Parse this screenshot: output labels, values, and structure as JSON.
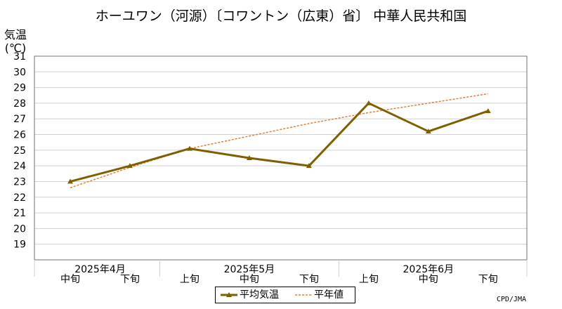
{
  "title": "ホーユワン（河源）〔コワントン（広東）省〕 中華人民共和国",
  "ylabel_line1": "気温",
  "ylabel_line2": "(℃)",
  "credit": "CPD/JMA",
  "legend": {
    "series_label": "平均気温",
    "normal_label": "平年値"
  },
  "colors": {
    "series": "#7f6000",
    "normal": "#ed7d31",
    "grid": "#d0d0d0",
    "axis": "#707070"
  },
  "chart_data": {
    "type": "line",
    "ylim": [
      18,
      31
    ],
    "yticks": [
      19,
      20,
      21,
      22,
      23,
      24,
      25,
      26,
      27,
      28,
      29,
      30,
      31
    ],
    "grid": true,
    "legend_position": "bottom-center",
    "categories": [
      "中旬",
      "下旬",
      "上旬",
      "中旬",
      "下旬",
      "上旬",
      "中旬",
      "下旬"
    ],
    "month_labels": [
      {
        "label": "2025年4月",
        "start": 0,
        "end": 1
      },
      {
        "label": "2025年5月",
        "start": 2,
        "end": 4
      },
      {
        "label": "2025年6月",
        "start": 5,
        "end": 7
      }
    ],
    "series": [
      {
        "name": "平均気温",
        "values": [
          23.0,
          24.0,
          25.1,
          24.5,
          24.0,
          28.0,
          26.2,
          27.5
        ]
      },
      {
        "name": "平年値",
        "values": [
          22.6,
          23.9,
          25.1,
          25.9,
          26.7,
          27.4,
          28.0,
          28.6
        ]
      }
    ]
  }
}
